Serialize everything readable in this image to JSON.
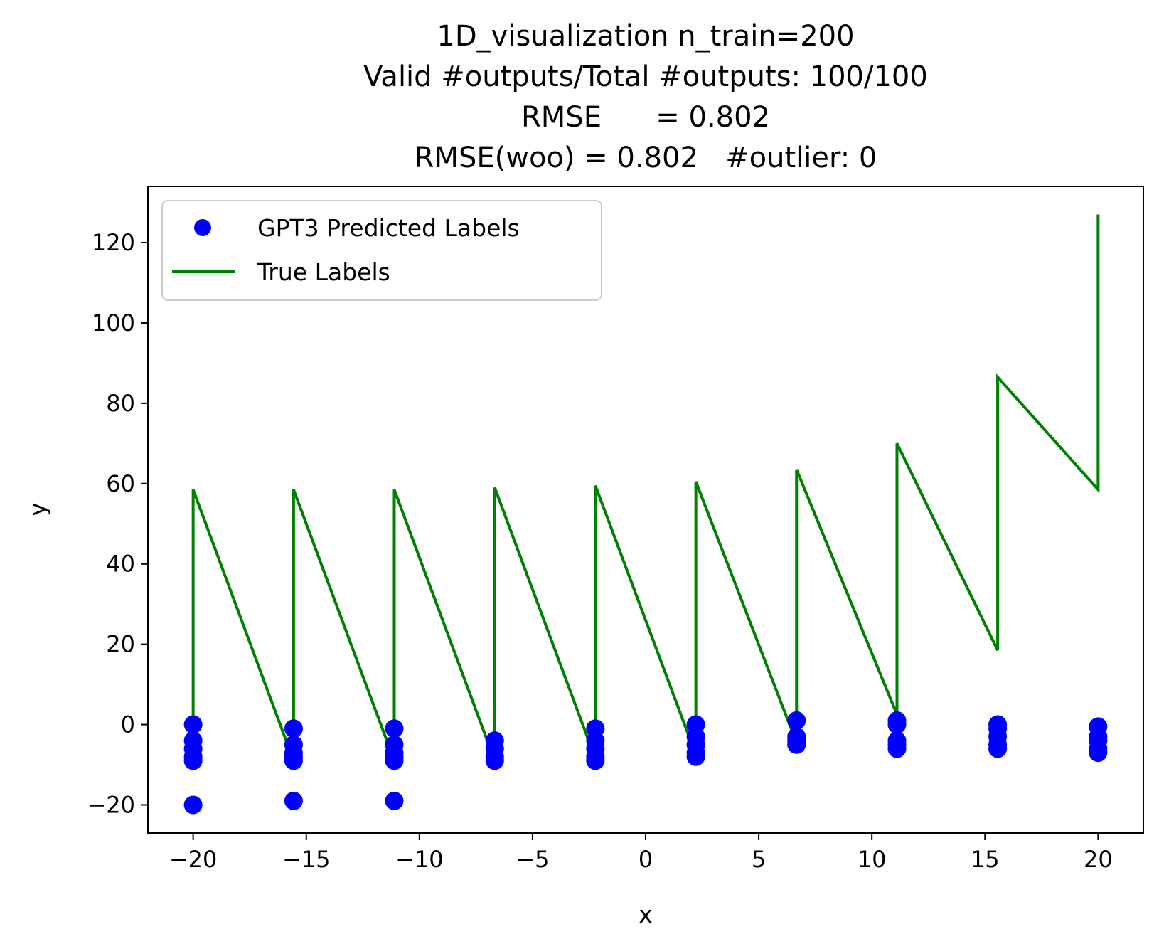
{
  "chart_data": {
    "type": "scatter",
    "title_lines": [
      "1D_visualization  n_train=200",
      "Valid #outputs/Total #outputs: 100/100",
      "RMSE      = 0.802",
      "RMSE(woo) = 0.802   #outlier: 0"
    ],
    "xlabel": "x",
    "ylabel": "y",
    "xlim": [
      -22,
      22
    ],
    "ylim": [
      -27,
      134
    ],
    "xticks": [
      -20,
      -15,
      -10,
      -5,
      0,
      5,
      10,
      15,
      20
    ],
    "xtick_labels": [
      "−20",
      "−15",
      "−10",
      "−5",
      "0",
      "5",
      "10",
      "15",
      "20"
    ],
    "yticks": [
      -20,
      0,
      20,
      40,
      60,
      80,
      100,
      120
    ],
    "ytick_labels": [
      "−20",
      "0",
      "20",
      "40",
      "60",
      "80",
      "100",
      "120"
    ],
    "grid": false,
    "legend_position": "top-left",
    "series": [
      {
        "name": "GPT3 Predicted Labels",
        "kind": "scatter",
        "color": "#0000ff",
        "points": [
          [
            -20,
            0
          ],
          [
            -20,
            -4
          ],
          [
            -20,
            -6
          ],
          [
            -20,
            -8
          ],
          [
            -20,
            -9
          ],
          [
            -20,
            -20
          ],
          [
            -15.56,
            -1
          ],
          [
            -15.56,
            -5
          ],
          [
            -15.56,
            -7
          ],
          [
            -15.56,
            -8
          ],
          [
            -15.56,
            -9
          ],
          [
            -15.56,
            -19
          ],
          [
            -11.11,
            -1
          ],
          [
            -11.11,
            -5
          ],
          [
            -11.11,
            -7
          ],
          [
            -11.11,
            -8
          ],
          [
            -11.11,
            -9
          ],
          [
            -11.11,
            -19
          ],
          [
            -6.67,
            -4
          ],
          [
            -6.67,
            -6
          ],
          [
            -6.67,
            -8
          ],
          [
            -6.67,
            -9
          ],
          [
            -2.22,
            -1
          ],
          [
            -2.22,
            -4
          ],
          [
            -2.22,
            -6
          ],
          [
            -2.22,
            -8
          ],
          [
            -2.22,
            -9
          ],
          [
            2.22,
            0
          ],
          [
            2.22,
            -3
          ],
          [
            2.22,
            -5
          ],
          [
            2.22,
            -7
          ],
          [
            2.22,
            -8
          ],
          [
            6.67,
            1
          ],
          [
            6.67,
            -3
          ],
          [
            6.67,
            -4
          ],
          [
            6.67,
            -5
          ],
          [
            11.11,
            1
          ],
          [
            11.11,
            0
          ],
          [
            11.11,
            -4
          ],
          [
            11.11,
            -5
          ],
          [
            11.11,
            -6
          ],
          [
            15.56,
            0
          ],
          [
            15.56,
            -1
          ],
          [
            15.56,
            -3
          ],
          [
            15.56,
            -5
          ],
          [
            15.56,
            -6
          ],
          [
            20,
            -0.5
          ],
          [
            20,
            -3
          ],
          [
            20,
            -4
          ],
          [
            20,
            -6
          ],
          [
            20,
            -7
          ]
        ]
      },
      {
        "name": "True Labels",
        "kind": "line",
        "color": "#008000",
        "points": [
          [
            -20,
            -9
          ],
          [
            -20,
            58.5
          ],
          [
            -15.56,
            -9
          ],
          [
            -15.56,
            58.5
          ],
          [
            -11.11,
            -9
          ],
          [
            -11.11,
            58.5
          ],
          [
            -6.67,
            -9
          ],
          [
            -6.67,
            59
          ],
          [
            -2.22,
            -8.5
          ],
          [
            -2.22,
            59.5
          ],
          [
            2.22,
            -7.5
          ],
          [
            2.22,
            60.5
          ],
          [
            6.67,
            -4.5
          ],
          [
            6.67,
            63.5
          ],
          [
            11.11,
            2.5
          ],
          [
            11.11,
            70
          ],
          [
            15.56,
            18.5
          ],
          [
            15.56,
            86.5
          ],
          [
            20,
            58.5
          ],
          [
            20,
            127
          ]
        ]
      }
    ]
  }
}
